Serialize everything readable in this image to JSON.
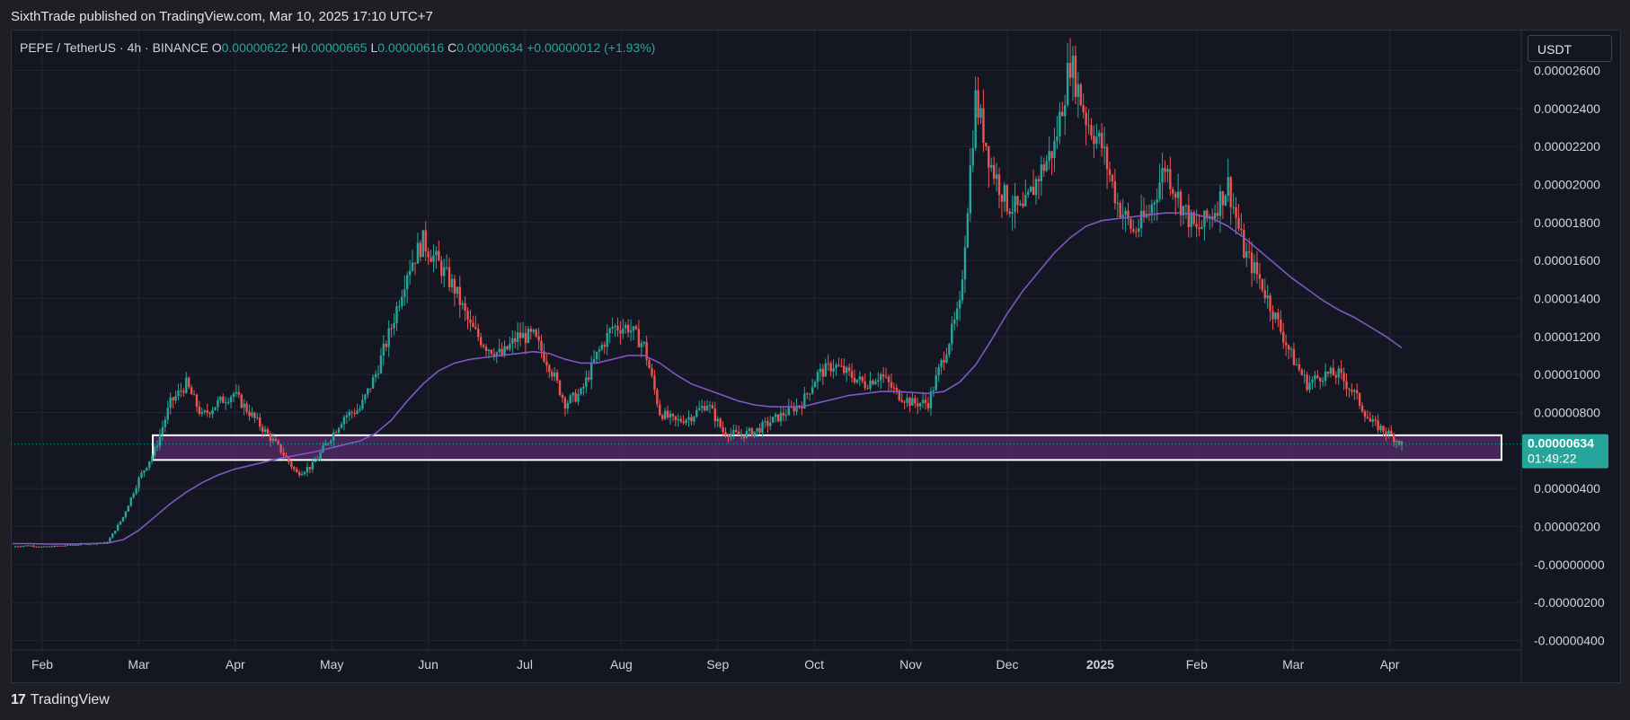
{
  "header": {
    "published": "SixthTrade published on TradingView.com, Mar 10, 2025 17:10 UTC+7"
  },
  "symbol": {
    "name": "PEPE / TetherUS · 4h · BINANCE",
    "o_label": "O",
    "o": "0.00000622",
    "h_label": "H",
    "h": "0.00000665",
    "l_label": "L",
    "l": "0.00000616",
    "c_label": "C",
    "c": "0.00000634",
    "change": "+0.00000012 (+1.93%)"
  },
  "currency": "USDT",
  "price_tag": {
    "price": "0.00000634",
    "countdown": "01:49:22"
  },
  "footer": {
    "brand": "TradingView",
    "logo_icon": "tradingview-logo-icon"
  },
  "colors": {
    "up": "#26a69a",
    "down": "#ef5350",
    "ma": "#7e57c2",
    "zone_fill": "#5b2c6f",
    "zone_border": "#ffffff",
    "price_tag": "#26a69a"
  },
  "chart_data": {
    "type": "line",
    "series": [
      {
        "values": [
          [
            9.5e-07,
            1e-06,
            9.2e-07,
            9.8e-07,
            1.05e-06,
            1.1e-06,
            1.15e-06,
            2.5e-06,
            4.5e-06,
            6e-06,
            8.5e-06,
            9.5e-06,
            7.8e-06,
            8.5e-06,
            9e-06,
            8e-06,
            7e-06,
            6e-06,
            4.8e-06,
            5.2e-06,
            6.5e-06,
            7.8e-06,
            8.2e-06,
            1e-05,
            1.25e-05,
            1.55e-05,
            1.7e-05,
            1.58e-05,
            1.45e-05,
            1.25e-05,
            1.15e-05,
            1.1e-05,
            1.2e-05,
            1.2e-05,
            1.05e-05,
            8.5e-06,
            9e-06,
            1.1e-05,
            1.25e-05,
            1.25e-05,
            1.15e-05,
            8e-06,
            7.5e-06,
            7.8e-06,
            8.5e-06,
            7e-06,
            6.8e-06,
            7e-06,
            7.5e-06,
            8e-06,
            8.5e-06,
            1e-05,
            1.05e-05,
            1e-05,
            9.5e-06,
            1e-05,
            9e-06,
            8.5e-06,
            8.5e-06,
            1.1e-05,
            1.35e-05,
            2.45e-05,
            2.1e-05,
            1.9e-05,
            1.85e-05,
            2.05e-05,
            2.2e-05,
            2.65e-05,
            2.35e-05,
            2.2e-05,
            1.9e-05,
            1.75e-05,
            1.85e-05,
            2.1e-05,
            1.9e-05,
            1.75e-05,
            1.85e-05,
            2e-05,
            1.65e-05,
            1.5e-05,
            1.3e-05,
            1.1e-05,
            9.5e-06,
            1e-05,
            1e-05,
            9e-06,
            7.5e-06,
            7e-06,
            6.34e-06
          ]
        ]
      }
    ],
    "ma_values": [
      1.1e-06,
      1.1e-06,
      1.08e-06,
      1.08e-06,
      1.08e-06,
      1.1e-06,
      1.12e-06,
      1.3e-06,
      1.8e-06,
      2.5e-06,
      3.2e-06,
      3.8e-06,
      4.3e-06,
      4.7e-06,
      5e-06,
      5.2e-06,
      5.4e-06,
      5.6e-06,
      5.75e-06,
      5.9e-06,
      6.1e-06,
      6.3e-06,
      6.5e-06,
      6.9e-06,
      7.6e-06,
      8.6e-06,
      9.5e-06,
      1.02e-05,
      1.06e-05,
      1.08e-05,
      1.09e-05,
      1.1e-05,
      1.11e-05,
      1.12e-05,
      1.11e-05,
      1.08e-05,
      1.06e-05,
      1.06e-05,
      1.08e-05,
      1.1e-05,
      1.1e-05,
      1.06e-05,
      1e-05,
      9.5e-06,
      9.2e-06,
      8.9e-06,
      8.6e-06,
      8.4e-06,
      8.3e-06,
      8.3e-06,
      8.3e-06,
      8.5e-06,
      8.7e-06,
      8.9e-06,
      9e-06,
      9.1e-06,
      9.1e-06,
      9.05e-06,
      9e-06,
      9.1e-06,
      9.6e-06,
      1.05e-05,
      1.18e-05,
      1.32e-05,
      1.44e-05,
      1.54e-05,
      1.64e-05,
      1.72e-05,
      1.78e-05,
      1.81e-05,
      1.82e-05,
      1.83e-05,
      1.84e-05,
      1.85e-05,
      1.85e-05,
      1.84e-05,
      1.82e-05,
      1.78e-05,
      1.72e-05,
      1.65e-05,
      1.58e-05,
      1.51e-05,
      1.45e-05,
      1.39e-05,
      1.34e-05,
      1.3e-05,
      1.25e-05,
      1.2e-05,
      1.14e-05
    ],
    "x_labels": [
      "Feb",
      "Mar",
      "Apr",
      "May",
      "Jun",
      "Jul",
      "Aug",
      "Sep",
      "Oct",
      "Nov",
      "Dec",
      "2025",
      "Feb",
      "Mar",
      "Apr"
    ],
    "x_bold": "2025",
    "y_ticks": [
      2.6e-05,
      2.4e-05,
      2.2e-05,
      2e-05,
      1.8e-05,
      1.6e-05,
      1.4e-05,
      1.2e-05,
      1e-05,
      8e-06,
      4e-06,
      2e-06,
      0.0,
      -2e-06,
      -4e-06
    ],
    "y_tick_labels": [
      "0.00002600",
      "0.00002400",
      "0.00002200",
      "0.00002000",
      "0.00001800",
      "0.00001600",
      "0.00001400",
      "0.00001200",
      "0.00001000",
      "0.00000800",
      "0.00000400",
      "0.00000200",
      "-0.00000000",
      "-0.00000200",
      "-0.00000400"
    ],
    "ylim": [
      -4.5e-06,
      2.81e-05
    ],
    "zone": [
      5.5e-06,
      6.8e-06
    ],
    "last_price": 6.34e-06,
    "grid": true
  }
}
